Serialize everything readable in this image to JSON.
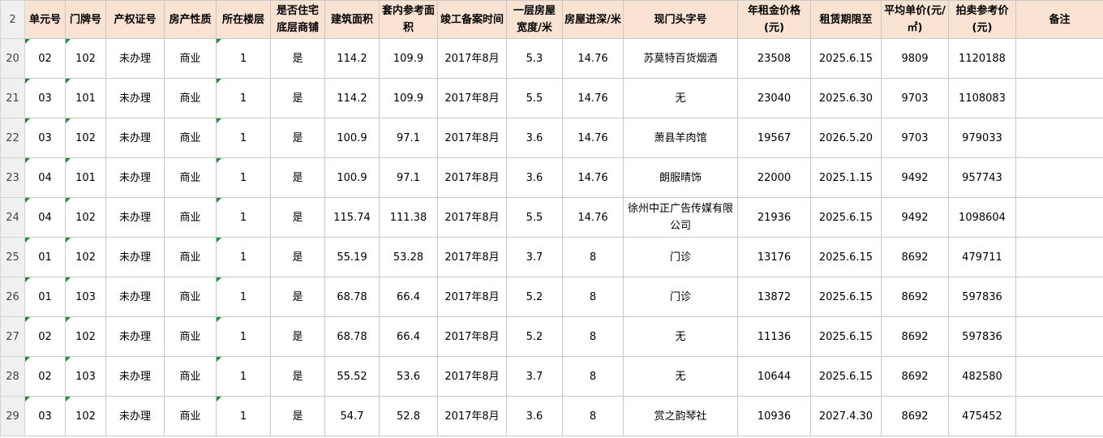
{
  "row_numbers": [
    "2",
    "20",
    "21",
    "22",
    "23",
    "24",
    "25",
    "26",
    "27",
    "28",
    "29"
  ],
  "table": {
    "header": [
      "单元号",
      "门牌号",
      "产权证号",
      "房产性质",
      "所在楼层",
      "是否住宅底层商铺",
      "建筑面积",
      "套内参考面积",
      "竣工备案时间",
      "一层房屋宽度/米",
      "房屋进深/米",
      "现门头字号",
      "年租金价格(元)",
      "租赁期限至",
      "平均单价(元/㎡)",
      "拍卖参考价(元)",
      "备注"
    ],
    "rows": [
      [
        "02",
        "102",
        "未办理",
        "商业",
        "1",
        "是",
        "114.2",
        "109.9",
        "2017年8月",
        "5.3",
        "14.76",
        "苏莫特百货烟酒",
        "23508",
        "2025.6.15",
        "9809",
        "1120188"
      ],
      [
        "03",
        "101",
        "未办理",
        "商业",
        "1",
        "是",
        "114.2",
        "109.9",
        "2017年8月",
        "5.5",
        "14.76",
        "无",
        "23040",
        "2025.6.30",
        "9703",
        "1108083"
      ],
      [
        "03",
        "102",
        "未办理",
        "商业",
        "1",
        "是",
        "100.9",
        "97.1",
        "2017年8月",
        "3.6",
        "14.76",
        "萧县羊肉馆",
        "19567",
        "2026.5.20",
        "9703",
        "979033"
      ],
      [
        "04",
        "101",
        "未办理",
        "商业",
        "1",
        "是",
        "100.9",
        "97.1",
        "2017年8月",
        "3.6",
        "14.76",
        "朗服晴饰",
        "22000",
        "2025.1.15",
        "9492",
        "957743"
      ],
      [
        "04",
        "102",
        "未办理",
        "商业",
        "1",
        "是",
        "115.74",
        "111.38",
        "2017年8月",
        "5.5",
        "14.76",
        "徐州中正广告传媒有限公司",
        "21936",
        "2025.6.15",
        "9492",
        "1098604"
      ],
      [
        "01",
        "102",
        "未办理",
        "商业",
        "1",
        "是",
        "55.19",
        "53.28",
        "2017年8月",
        "3.7",
        "8",
        "门诊",
        "13176",
        "2025.6.15",
        "8692",
        "479711"
      ],
      [
        "01",
        "103",
        "未办理",
        "商业",
        "1",
        "是",
        "68.78",
        "66.4",
        "2017年8月",
        "5.2",
        "8",
        "门诊",
        "13872",
        "2025.6.15",
        "8692",
        "597836"
      ],
      [
        "02",
        "102",
        "未办理",
        "商业",
        "1",
        "是",
        "68.78",
        "66.4",
        "2017年8月",
        "5.2",
        "8",
        "无",
        "11136",
        "2025.6.15",
        "8692",
        "597836"
      ],
      [
        "02",
        "103",
        "未办理",
        "商业",
        "1",
        "是",
        "55.52",
        "53.6",
        "2017年8月",
        "3.7",
        "8",
        "无",
        "10644",
        "2025.6.15",
        "8692",
        "482580"
      ],
      [
        "03",
        "102",
        "未办理",
        "商业",
        "1",
        "是",
        "54.7",
        "52.8",
        "2017年8月",
        "3.6",
        "8",
        "赏之韵琴社",
        "10936",
        "2027.4.30",
        "8692",
        "475452"
      ]
    ]
  }
}
